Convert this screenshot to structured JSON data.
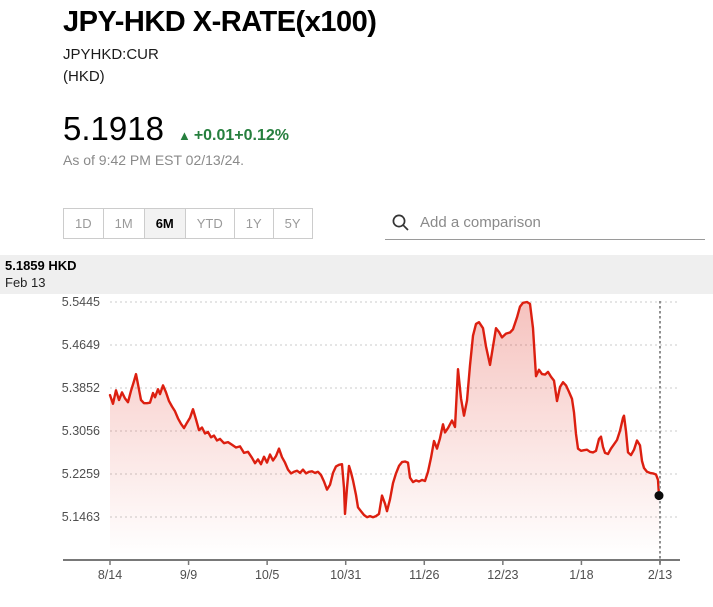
{
  "header": {
    "title": "JPY-HKD X-RATE(x100)",
    "ticker": "JPYHKD:CUR",
    "currency_unit": "(HKD)",
    "price": "5.1918",
    "change_text": "+0.01+0.12%",
    "change_direction": "up",
    "as_of": "As of 9:42 PM EST 02/13/24.",
    "positive_color": "#267f3e"
  },
  "controls": {
    "ranges": [
      {
        "label": "1D",
        "active": false
      },
      {
        "label": "1M",
        "active": false
      },
      {
        "label": "6M",
        "active": true
      },
      {
        "label": "YTD",
        "active": false
      },
      {
        "label": "1Y",
        "active": false
      },
      {
        "label": "5Y",
        "active": false
      }
    ],
    "comparison": {
      "placeholder": "Add a comparison",
      "icon": "search-icon"
    }
  },
  "chart_data": {
    "type": "area",
    "title": "JPY-HKD X-RATE(x100), 6M range",
    "line_color": "#dc1f10",
    "fill_color": "#dc1f10",
    "grid": "dotted-horizontal",
    "legend_position": "none",
    "ylabel": "",
    "xlabel": "",
    "ylim": [
      5.1,
      5.57
    ],
    "y_ticks": [
      5.5445,
      5.4649,
      5.3852,
      5.3056,
      5.2259,
      5.1463
    ],
    "x_tick_labels": [
      "8/14",
      "9/9",
      "10/5",
      "10/31",
      "11/26",
      "12/23",
      "1/18",
      "2/13"
    ],
    "last_point": {
      "label": "5.1859 HKD",
      "date": "Feb 13",
      "value": 5.1859
    },
    "series": [
      {
        "name": "JPYHKD:CUR",
        "points": [
          [
            110,
            5.372
          ],
          [
            113,
            5.356
          ],
          [
            116,
            5.381
          ],
          [
            119,
            5.363
          ],
          [
            122,
            5.377
          ],
          [
            125,
            5.366
          ],
          [
            128,
            5.359
          ],
          [
            131,
            5.38
          ],
          [
            134,
            5.398
          ],
          [
            136,
            5.411
          ],
          [
            138,
            5.392
          ],
          [
            141,
            5.363
          ],
          [
            144,
            5.357
          ],
          [
            147,
            5.357
          ],
          [
            150,
            5.358
          ],
          [
            153,
            5.376
          ],
          [
            155,
            5.368
          ],
          [
            158,
            5.383
          ],
          [
            160,
            5.374
          ],
          [
            163,
            5.39
          ],
          [
            166,
            5.377
          ],
          [
            169,
            5.361
          ],
          [
            172,
            5.351
          ],
          [
            175,
            5.342
          ],
          [
            178,
            5.329
          ],
          [
            181,
            5.319
          ],
          [
            184,
            5.311
          ],
          [
            187,
            5.321
          ],
          [
            190,
            5.33
          ],
          [
            193,
            5.346
          ],
          [
            196,
            5.327
          ],
          [
            199,
            5.307
          ],
          [
            202,
            5.312
          ],
          [
            205,
            5.301
          ],
          [
            208,
            5.304
          ],
          [
            211,
            5.294
          ],
          [
            214,
            5.297
          ],
          [
            217,
            5.288
          ],
          [
            220,
            5.291
          ],
          [
            224,
            5.283
          ],
          [
            228,
            5.285
          ],
          [
            232,
            5.28
          ],
          [
            236,
            5.275
          ],
          [
            240,
            5.277
          ],
          [
            244,
            5.265
          ],
          [
            248,
            5.267
          ],
          [
            252,
            5.256
          ],
          [
            255,
            5.246
          ],
          [
            258,
            5.253
          ],
          [
            261,
            5.244
          ],
          [
            264,
            5.258
          ],
          [
            267,
            5.247
          ],
          [
            270,
            5.262
          ],
          [
            273,
            5.251
          ],
          [
            276,
            5.259
          ],
          [
            279,
            5.273
          ],
          [
            282,
            5.257
          ],
          [
            285,
            5.247
          ],
          [
            288,
            5.234
          ],
          [
            291,
            5.227
          ],
          [
            294,
            5.23
          ],
          [
            297,
            5.232
          ],
          [
            300,
            5.228
          ],
          [
            303,
            5.234
          ],
          [
            306,
            5.227
          ],
          [
            309,
            5.23
          ],
          [
            312,
            5.231
          ],
          [
            315,
            5.228
          ],
          [
            318,
            5.23
          ],
          [
            321,
            5.224
          ],
          [
            324,
            5.212
          ],
          [
            327,
            5.197
          ],
          [
            330,
            5.206
          ],
          [
            333,
            5.228
          ],
          [
            336,
            5.24
          ],
          [
            339,
            5.243
          ],
          [
            342,
            5.244
          ],
          [
            344,
            5.2
          ],
          [
            345,
            5.152
          ],
          [
            347,
            5.2
          ],
          [
            349,
            5.241
          ],
          [
            351,
            5.229
          ],
          [
            353,
            5.214
          ],
          [
            356,
            5.187
          ],
          [
            358,
            5.164
          ],
          [
            361,
            5.157
          ],
          [
            364,
            5.15
          ],
          [
            367,
            5.146
          ],
          [
            370,
            5.148
          ],
          [
            373,
            5.146
          ],
          [
            376,
            5.148
          ],
          [
            379,
            5.152
          ],
          [
            382,
            5.186
          ],
          [
            385,
            5.171
          ],
          [
            387,
            5.157
          ],
          [
            390,
            5.179
          ],
          [
            393,
            5.209
          ],
          [
            396,
            5.227
          ],
          [
            399,
            5.241
          ],
          [
            402,
            5.248
          ],
          [
            405,
            5.249
          ],
          [
            408,
            5.247
          ],
          [
            410,
            5.219
          ],
          [
            413,
            5.211
          ],
          [
            416,
            5.214
          ],
          [
            419,
            5.212
          ],
          [
            422,
            5.215
          ],
          [
            425,
            5.213
          ],
          [
            428,
            5.23
          ],
          [
            431,
            5.256
          ],
          [
            434,
            5.287
          ],
          [
            437,
            5.273
          ],
          [
            440,
            5.292
          ],
          [
            443,
            5.318
          ],
          [
            445,
            5.303
          ],
          [
            448,
            5.311
          ],
          [
            452,
            5.325
          ],
          [
            455,
            5.313
          ],
          [
            458,
            5.42
          ],
          [
            461,
            5.366
          ],
          [
            464,
            5.334
          ],
          [
            467,
            5.362
          ],
          [
            470,
            5.427
          ],
          [
            473,
            5.482
          ],
          [
            476,
            5.504
          ],
          [
            479,
            5.507
          ],
          [
            483,
            5.496
          ],
          [
            486,
            5.462
          ],
          [
            490,
            5.428
          ],
          [
            493,
            5.462
          ],
          [
            496,
            5.496
          ],
          [
            499,
            5.489
          ],
          [
            502,
            5.479
          ],
          [
            506,
            5.486
          ],
          [
            510,
            5.488
          ],
          [
            513,
            5.494
          ],
          [
            517,
            5.516
          ],
          [
            520,
            5.536
          ],
          [
            523,
            5.543
          ],
          [
            527,
            5.5445
          ],
          [
            530,
            5.541
          ],
          [
            533,
            5.496
          ],
          [
            536,
            5.407
          ],
          [
            539,
            5.419
          ],
          [
            542,
            5.411
          ],
          [
            545,
            5.41
          ],
          [
            548,
            5.415
          ],
          [
            551,
            5.406
          ],
          [
            554,
            5.399
          ],
          [
            557,
            5.361
          ],
          [
            560,
            5.387
          ],
          [
            563,
            5.396
          ],
          [
            566,
            5.39
          ],
          [
            569,
            5.378
          ],
          [
            572,
            5.365
          ],
          [
            574,
            5.34
          ],
          [
            576,
            5.3
          ],
          [
            578,
            5.273
          ],
          [
            581,
            5.269
          ],
          [
            584,
            5.27
          ],
          [
            587,
            5.271
          ],
          [
            590,
            5.267
          ],
          [
            593,
            5.266
          ],
          [
            596,
            5.269
          ],
          [
            599,
            5.291
          ],
          [
            601,
            5.295
          ],
          [
            603,
            5.276
          ],
          [
            605,
            5.265
          ],
          [
            608,
            5.263
          ],
          [
            611,
            5.273
          ],
          [
            614,
            5.281
          ],
          [
            617,
            5.289
          ],
          [
            620,
            5.306
          ],
          [
            623,
            5.33
          ],
          [
            624,
            5.334
          ],
          [
            626,
            5.305
          ],
          [
            628,
            5.266
          ],
          [
            631,
            5.261
          ],
          [
            634,
            5.271
          ],
          [
            637,
            5.288
          ],
          [
            640,
            5.279
          ],
          [
            642,
            5.25
          ],
          [
            644,
            5.237
          ],
          [
            647,
            5.23
          ],
          [
            650,
            5.228
          ],
          [
            653,
            5.227
          ],
          [
            656,
            5.225
          ],
          [
            658,
            5.215
          ],
          [
            659,
            5.1859
          ]
        ]
      }
    ]
  }
}
